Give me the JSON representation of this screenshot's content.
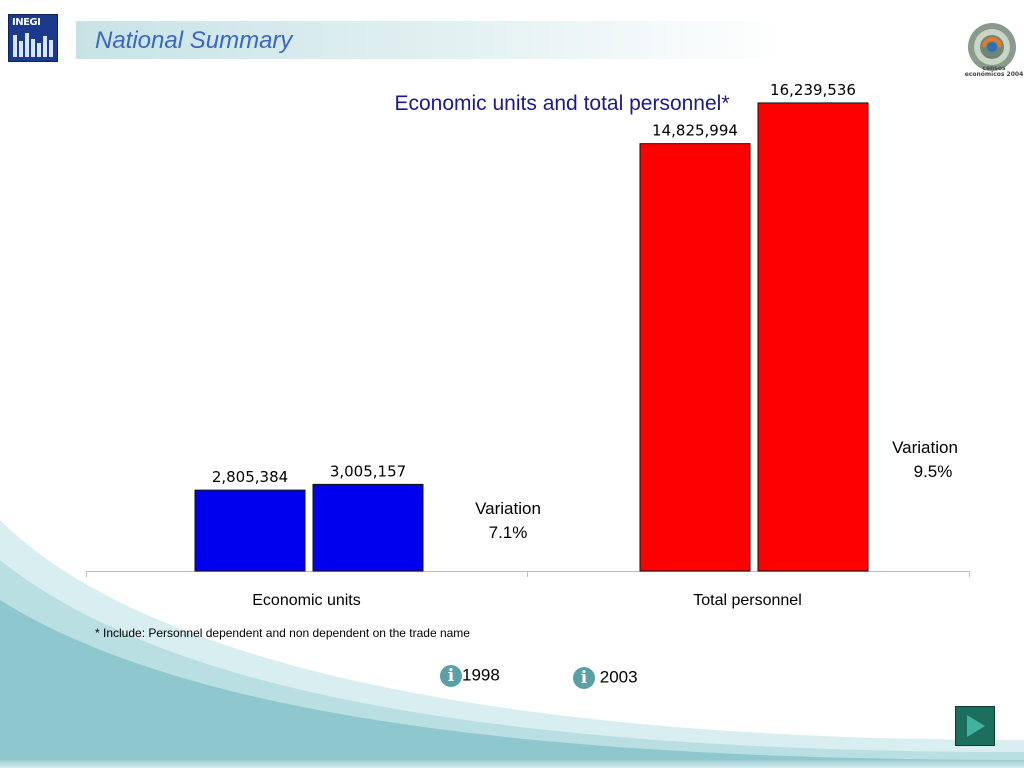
{
  "header": {
    "logo_text": "INEGI",
    "page_title": "National Summary",
    "censos_logo_text": "censos económicos 2004"
  },
  "chart_data": {
    "type": "bar",
    "title": "Economic units and total  personnel*",
    "categories": [
      "Economic units",
      "Total personnel"
    ],
    "series": [
      {
        "name": "1998",
        "values": [
          2805384,
          14825994
        ],
        "labels": [
          "2,805,384",
          "14,825,994"
        ]
      },
      {
        "name": "2003",
        "values": [
          3005157,
          16239536
        ],
        "labels": [
          "3,005,157",
          "16,239,536"
        ]
      }
    ],
    "colors": {
      "Economic units": "#0000ee",
      "Total personnel": "#ff0000"
    },
    "ylim": [
      0,
      17000000
    ],
    "grid": false,
    "annotations": [
      {
        "category": "Economic units",
        "line1": "Variation",
        "line2": "7.1%"
      },
      {
        "category": "Total personnel",
        "line1": "Variation",
        "line2": "9.5%"
      }
    ]
  },
  "footnote": "* Include: Personnel  dependent and non dependent on the trade name",
  "legend": [
    {
      "icon": "info-icon",
      "glyph": "i",
      "label": "1998"
    },
    {
      "icon": "info-icon",
      "glyph": "i",
      "label": "2003"
    }
  ],
  "navigation": {
    "next_icon": "next-arrow-icon"
  }
}
